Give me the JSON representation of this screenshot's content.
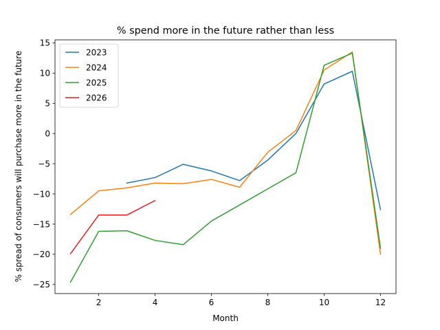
{
  "chart_data": {
    "type": "line",
    "title": "% spend more in the future rather than less",
    "xlabel": "Month",
    "ylabel": "% spread of consumers will purchase more in the future",
    "xlim": [
      0.45,
      12.55
    ],
    "ylim": [
      -26.5,
      15.5
    ],
    "xticks": [
      2,
      4,
      6,
      8,
      10,
      12
    ],
    "yticks": [
      -25,
      -20,
      -15,
      -10,
      -5,
      0,
      5,
      10,
      15
    ],
    "grid": false,
    "legend_position": "top-left",
    "series": [
      {
        "name": "2023",
        "color": "#1f77b4",
        "x": [
          3,
          4,
          5,
          6,
          7,
          8,
          9,
          10,
          11,
          12
        ],
        "y": [
          -8.2,
          -7.3,
          -5.1,
          -6.2,
          -7.8,
          -4.4,
          0.0,
          8.2,
          10.3,
          -12.6
        ]
      },
      {
        "name": "2024",
        "color": "#ff7f0e",
        "x": [
          1,
          2,
          3,
          4,
          5,
          6,
          7,
          8,
          9,
          10,
          11,
          12
        ],
        "y": [
          -13.4,
          -9.5,
          -9.0,
          -8.2,
          -8.3,
          -7.6,
          -8.9,
          -3.1,
          0.5,
          10.5,
          13.5,
          -20.0
        ]
      },
      {
        "name": "2025",
        "color": "#2ca02c",
        "x": [
          1,
          2,
          3,
          4,
          5,
          6,
          9,
          10,
          11,
          12
        ],
        "y": [
          -24.6,
          -16.2,
          -16.1,
          -17.7,
          -18.4,
          -14.5,
          -6.5,
          11.3,
          13.3,
          -19.0
        ]
      },
      {
        "name": "2026",
        "color": "#e41a1c",
        "x": [
          1,
          2,
          3,
          4
        ],
        "y": [
          -19.9,
          -13.5,
          -13.5,
          -11.1
        ]
      }
    ]
  }
}
